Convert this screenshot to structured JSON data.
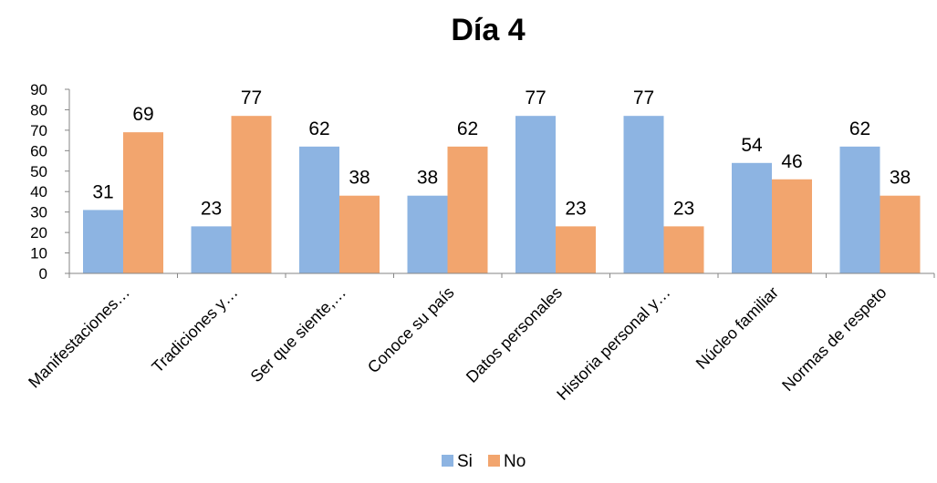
{
  "chart_data": {
    "type": "bar",
    "title": "Día 4",
    "xlabel": "",
    "ylabel": "",
    "ylim": [
      0,
      90
    ],
    "yticks": [
      0,
      10,
      20,
      30,
      40,
      50,
      60,
      70,
      80,
      90
    ],
    "grid": false,
    "legend_position": "bottom",
    "categories": [
      "Manifestaciones…",
      "Tradiciones y…",
      "Ser que siente,…",
      "Conoce su país",
      "Datos personales",
      "Historia personal y…",
      "Núcleo familiar",
      "Normas de respeto"
    ],
    "series": [
      {
        "name": "Si",
        "color": "#8DB4E2",
        "values": [
          31,
          23,
          62,
          38,
          77,
          77,
          54,
          62
        ]
      },
      {
        "name": "No",
        "color": "#F2A56E",
        "values": [
          69,
          77,
          38,
          62,
          23,
          23,
          46,
          38
        ]
      }
    ]
  }
}
